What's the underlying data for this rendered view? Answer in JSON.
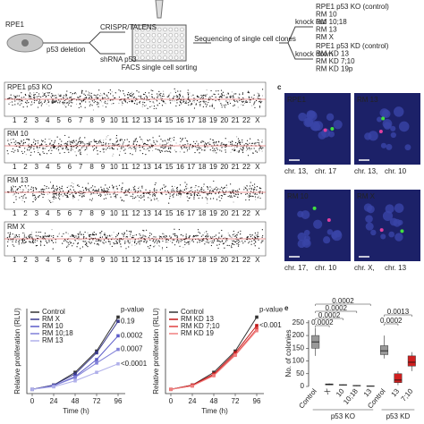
{
  "schematic": {
    "cell": "RPE1",
    "deletion": "p53 deletion",
    "method_ko": "CRISPR/TALENS",
    "method_kd": "shRNA p53",
    "sorting": "FACS single cell sorting",
    "sequencing": "Sequencing of single cell clones",
    "ko": "knock out",
    "kd": "knock down",
    "ko_clones": [
      "RPE1 p53 KO (control)",
      "RM 10",
      "RM 10;18",
      "RM 13",
      "RM X"
    ],
    "kd_clones": [
      "RPE1 p53 KD (control)",
      "RM KD 13",
      "RM KD 7;10",
      "RM KD 19p"
    ]
  },
  "karyotypes": {
    "panels": [
      "RPE1 p53 KO",
      "RM 10",
      "RM 13",
      "RM X"
    ],
    "chromosomes": [
      "1",
      "2",
      "3",
      "4",
      "5",
      "6",
      "7",
      "8",
      "9",
      "10",
      "11",
      "12",
      "13",
      "14",
      "15",
      "16",
      "17",
      "18",
      "19",
      "20",
      "21",
      "22",
      "X"
    ]
  },
  "microscopy": {
    "letter": "c",
    "images": [
      {
        "label": "RPE1",
        "caption": [
          "chr. 13,",
          "chr. 17"
        ]
      },
      {
        "label": "RM 13",
        "caption": [
          "chr. 13,",
          "chr. 10"
        ]
      },
      {
        "label": "RM 10",
        "caption": [
          "chr. 17,",
          "chr. 10"
        ]
      },
      {
        "label": "RM X",
        "caption": [
          "chr. X,",
          "chr. 13"
        ]
      }
    ]
  },
  "chart_data": [
    {
      "type": "line",
      "y_label": "Relative proliferation (RLU)",
      "x_label": "Time (h)",
      "x": [
        0,
        24,
        48,
        72,
        96
      ],
      "xlim": [
        -6,
        104
      ],
      "xticks": [
        0,
        24,
        48,
        72,
        96
      ],
      "ylim": [
        0,
        10
      ],
      "series": [
        {
          "name": "Control",
          "color": "#333333",
          "values": [
            0.5,
            1,
            2.5,
            5,
            9
          ]
        },
        {
          "name": "RM X",
          "color": "#3a3a8c",
          "values": [
            0.5,
            1,
            2.3,
            4.8,
            8.5
          ]
        },
        {
          "name": "RM 10",
          "color": "#5b5bc8",
          "values": [
            0.5,
            0.9,
            2,
            4,
            6.8
          ]
        },
        {
          "name": "RM 10;18",
          "color": "#8080d8",
          "values": [
            0.5,
            0.9,
            1.9,
            3.6,
            5.2
          ]
        },
        {
          "name": "RM 13",
          "color": "#b0b0ea",
          "values": [
            0.5,
            0.8,
            1.5,
            2.5,
            3.5
          ]
        }
      ],
      "annotations": [
        "p-value",
        "0.19",
        "0.0002",
        "0.0007",
        "<0.0001"
      ]
    },
    {
      "type": "line",
      "y_label": "Relative proliferation (RLU)",
      "x_label": "Time (h)",
      "x": [
        0,
        24,
        48,
        72,
        96
      ],
      "xlim": [
        -6,
        104
      ],
      "xticks": [
        0,
        24,
        48,
        72,
        96
      ],
      "ylim": [
        0,
        10
      ],
      "series": [
        {
          "name": "Control",
          "color": "#333333",
          "values": [
            0.5,
            1,
            2.5,
            5,
            9
          ]
        },
        {
          "name": "RM KD 13",
          "color": "#c01818",
          "values": [
            0.5,
            1,
            2.3,
            4.8,
            8
          ]
        },
        {
          "name": "RM KD 7;10",
          "color": "#e04040",
          "values": [
            0.5,
            0.9,
            2.2,
            4.6,
            7.6
          ]
        },
        {
          "name": "RM KD 19",
          "color": "#f08080",
          "values": [
            0.5,
            0.9,
            2.1,
            4.5,
            7.4
          ]
        }
      ],
      "annotations": [
        "p-value",
        "<0.001"
      ]
    },
    {
      "type": "box",
      "letter": "e",
      "y_label": "No. of colonies",
      "ylim": [
        0,
        260
      ],
      "yticks": [
        0,
        50,
        100,
        150,
        200,
        250
      ],
      "categories": [
        "Control",
        "X",
        "10",
        "10;18",
        "13",
        "Control",
        "13",
        "7;10"
      ],
      "colors": [
        "#999999",
        "#999999",
        "#999999",
        "#999999",
        "#999999",
        "#999999",
        "#d02020",
        "#d02020"
      ],
      "boxes": [
        {
          "min": 120,
          "q1": 150,
          "median": 175,
          "q3": 200,
          "max": 230
        },
        {
          "min": 5,
          "q1": 6,
          "median": 8,
          "q3": 10,
          "max": 12
        },
        {
          "min": 4,
          "q1": 5,
          "median": 6,
          "q3": 7,
          "max": 8
        },
        {
          "min": 1,
          "q1": 2,
          "median": 3,
          "q3": 4,
          "max": 5
        },
        {
          "min": 0,
          "q1": 1,
          "median": 1,
          "q3": 2,
          "max": 3
        },
        {
          "min": 110,
          "q1": 125,
          "median": 140,
          "q3": 160,
          "max": 200
        },
        {
          "min": 5,
          "q1": 15,
          "median": 25,
          "q3": 50,
          "max": 60
        },
        {
          "min": 60,
          "q1": 80,
          "median": 95,
          "q3": 120,
          "max": 135
        }
      ],
      "groups": [
        "p53 KO",
        "p53 KD"
      ],
      "p_values": [
        "0.0002",
        "0.0002",
        "0.0002",
        "0.0002",
        "0.0013",
        "0.0002"
      ]
    }
  ]
}
